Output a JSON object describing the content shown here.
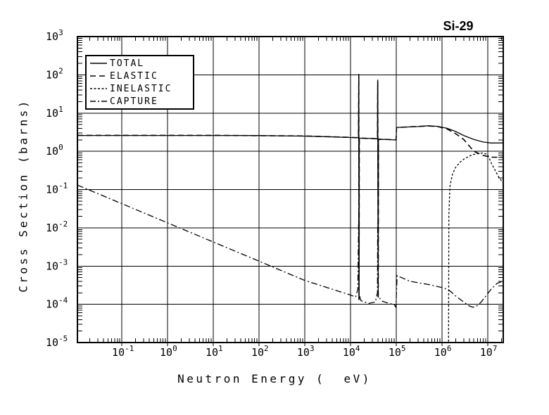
{
  "chart_data": {
    "type": "line",
    "title": "Si-29",
    "xlabel": "Neutron Energy (  eV)",
    "ylabel": "Cross Section (barns)",
    "xscale": "log",
    "yscale": "log",
    "xlim": [
      0.0107,
      22000000.0
    ],
    "ylim": [
      1e-05,
      1000.0
    ],
    "x_tick_exponents": [
      -1,
      0,
      1,
      2,
      3,
      4,
      5,
      6,
      7
    ],
    "y_tick_exponents": [
      3,
      2,
      1,
      0,
      -1,
      -2,
      -3,
      -4,
      -5
    ],
    "grid": "major-both",
    "legend_position": "top-left-inside",
    "series": [
      {
        "name": "TOTAL",
        "style": "solid",
        "points": [
          [
            0.0107,
            2.6
          ],
          [
            10,
            2.6
          ],
          [
            100,
            2.58
          ],
          [
            1000,
            2.5
          ],
          [
            3000,
            2.42
          ],
          [
            10000,
            2.3
          ],
          [
            15000,
            2.26
          ],
          [
            15200,
            106
          ],
          [
            15400,
            0.00013
          ],
          [
            15600,
            2.2
          ],
          [
            20000,
            2.2
          ],
          [
            35000,
            2.15
          ],
          [
            39000,
            2.1
          ],
          [
            39500,
            75
          ],
          [
            40500,
            0.00015
          ],
          [
            41000,
            2.06
          ],
          [
            60000,
            2.05
          ],
          [
            100000,
            1.98
          ],
          [
            102000,
            4.2
          ],
          [
            300000,
            4.45
          ],
          [
            500000,
            4.65
          ],
          [
            800000,
            4.5
          ],
          [
            1300000,
            4.0
          ],
          [
            2000000,
            3.3
          ],
          [
            3000000,
            2.6
          ],
          [
            5000000,
            2.05
          ],
          [
            8000000,
            1.75
          ],
          [
            12000000,
            1.65
          ],
          [
            22000000,
            1.66
          ]
        ]
      },
      {
        "name": "ELASTIC",
        "style": "long-dash",
        "points": [
          [
            0.0107,
            2.62
          ],
          [
            10,
            2.62
          ],
          [
            1000,
            2.52
          ],
          [
            10000,
            2.32
          ],
          [
            15000,
            2.28
          ],
          [
            15250,
            95
          ],
          [
            15450,
            0.00013
          ],
          [
            15650,
            2.22
          ],
          [
            39000,
            2.12
          ],
          [
            39550,
            68
          ],
          [
            40550,
            0.00014
          ],
          [
            41000,
            2.08
          ],
          [
            100000,
            2.0
          ],
          [
            102000,
            4.18
          ],
          [
            500000,
            4.6
          ],
          [
            800000,
            4.45
          ],
          [
            1300000,
            3.85
          ],
          [
            2000000,
            2.9
          ],
          [
            3000000,
            2.05
          ],
          [
            5000000,
            1.0
          ],
          [
            8000000,
            0.78
          ],
          [
            12000000,
            0.7
          ],
          [
            22000000,
            0.7
          ]
        ]
      },
      {
        "name": "INELASTIC",
        "style": "short-dash",
        "points": [
          [
            1400000,
            1.05e-05
          ],
          [
            1420000,
            0.02
          ],
          [
            1500000,
            0.12
          ],
          [
            1700000,
            0.25
          ],
          [
            2000000,
            0.38
          ],
          [
            2500000,
            0.52
          ],
          [
            3000000,
            0.62
          ],
          [
            4000000,
            0.75
          ],
          [
            5000000,
            0.83
          ],
          [
            6500000,
            0.89
          ],
          [
            8000000,
            0.9
          ],
          [
            10000000,
            0.82
          ],
          [
            12000000,
            0.5
          ],
          [
            15000000,
            0.3
          ],
          [
            18000000,
            0.2
          ],
          [
            22000000,
            0.15
          ]
        ]
      },
      {
        "name": "CAPTURE",
        "style": "dash-dot",
        "points": [
          [
            0.0107,
            0.131
          ],
          [
            0.0253,
            0.085
          ],
          [
            1,
            0.0135
          ],
          [
            100,
            0.00135
          ],
          [
            1000,
            0.00042
          ],
          [
            10000,
            0.000175
          ],
          [
            13000,
            0.000155
          ],
          [
            14500,
            0.00025
          ],
          [
            15200,
            0.025
          ],
          [
            15500,
            0.00018
          ],
          [
            17000,
            0.000125
          ],
          [
            25000,
            0.000105
          ],
          [
            35000,
            0.000115
          ],
          [
            39000,
            0.0002
          ],
          [
            39500,
            0.013
          ],
          [
            40500,
            0.00016
          ],
          [
            50000,
            0.00012
          ],
          [
            70000,
            0.000105
          ],
          [
            90000,
            0.0001
          ],
          [
            99000,
            8.3e-05
          ],
          [
            105000,
            0.00056
          ],
          [
            200000,
            0.0004
          ],
          [
            500000,
            0.00033
          ],
          [
            1000000,
            0.000275
          ],
          [
            1350000,
            0.000245
          ],
          [
            1600000,
            0.00021
          ],
          [
            2000000,
            0.000165
          ],
          [
            3000000,
            0.000115
          ],
          [
            4000000,
            9e-05
          ],
          [
            4800000,
            8.4e-05
          ],
          [
            5500000,
            8.6e-05
          ],
          [
            7000000,
            0.00011
          ],
          [
            9000000,
            0.00016
          ],
          [
            12000000,
            0.00025
          ],
          [
            16000000,
            0.00035
          ],
          [
            22000000,
            0.00041
          ]
        ]
      }
    ]
  },
  "colors": {
    "line": "#000000",
    "background": "#ffffff"
  }
}
